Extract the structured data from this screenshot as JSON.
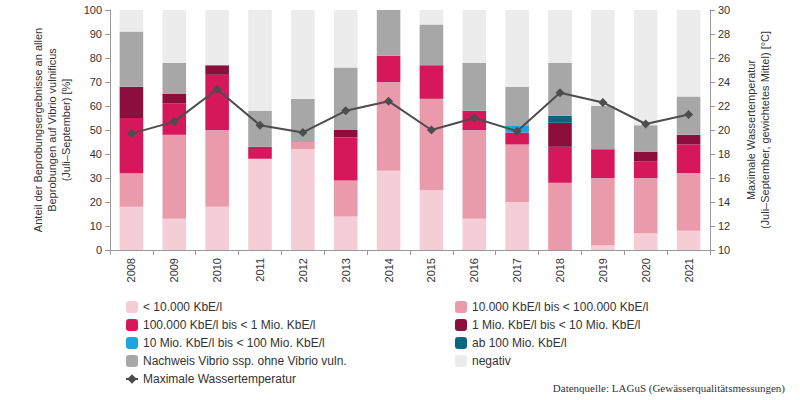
{
  "chart_data": {
    "type": "bar",
    "stacked": true,
    "grid": false,
    "categories": [
      "2008",
      "2009",
      "2010",
      "2011",
      "2012",
      "2013",
      "2014",
      "2015",
      "2016",
      "2017",
      "2018",
      "2019",
      "2020",
      "2021"
    ],
    "y_label": "Anteil der Beprobungsergebnisse an allen\nBeprobungen auf Vibrio vulnificus\n(Juli–September) [%]",
    "y2_label": "Maximale Wassertemperatur\n(Juli–September, gewichtetes Mittel) [°C]",
    "ylim": [
      0,
      100
    ],
    "yticks": [
      0,
      10,
      20,
      30,
      40,
      50,
      60,
      70,
      80,
      90,
      100
    ],
    "y2lim": [
      10,
      30
    ],
    "y2ticks": [
      10,
      12,
      14,
      16,
      18,
      20,
      22,
      24,
      26,
      28,
      30
    ],
    "source": "Datenquelle: LAGuS (Gewässerqualitätsmessungen)",
    "series": [
      {
        "name": "< 10.000 KbE/l",
        "color": "#f5cdd7",
        "values": [
          18,
          13,
          18,
          38,
          42,
          14,
          33,
          25,
          13,
          20,
          0,
          2,
          7,
          8
        ]
      },
      {
        "name": "10.000 KbE/l bis < 100.000 KbE/l",
        "color": "#e99aab",
        "values": [
          14,
          35,
          32,
          0,
          3,
          15,
          37,
          38,
          37,
          24,
          28,
          28,
          23,
          24
        ]
      },
      {
        "name": "100.000 KbE/l bis < 1 Mio. KbE/l",
        "color": "#d7175c",
        "values": [
          23,
          13,
          23,
          5,
          0,
          18,
          11,
          14,
          8,
          5,
          15,
          12,
          7,
          12
        ]
      },
      {
        "name": "1 Mio. KbE/l bis < 10 Mio. KbE/l",
        "color": "#8b0e3d",
        "values": [
          13,
          4,
          4,
          0,
          0,
          3,
          0,
          0,
          0,
          0,
          10,
          0,
          4,
          4
        ]
      },
      {
        "name": "10 Mio. KbE/l bis < 100 Mio. KbE/l",
        "color": "#1fa5dd",
        "values": [
          0,
          0,
          0,
          0,
          0,
          0,
          0,
          0,
          0,
          3,
          0,
          0,
          0,
          0
        ]
      },
      {
        "name": "ab 100 Mio. KbE/l",
        "color": "#0a667f",
        "values": [
          0,
          0,
          0,
          0,
          0,
          0,
          0,
          0,
          0,
          0,
          3,
          0,
          0,
          0
        ]
      },
      {
        "name": "Nachweis Vibrio ssp. ohne Vibrio vuln.",
        "color": "#a7a7a7",
        "values": [
          23,
          13,
          0,
          15,
          18,
          26,
          19,
          17,
          20,
          16,
          22,
          18,
          11,
          16
        ]
      },
      {
        "name": "negativ",
        "color": "#ececec",
        "values": [
          9,
          22,
          23,
          42,
          37,
          24,
          0,
          6,
          22,
          32,
          22,
          40,
          48,
          36
        ]
      },
      {
        "name": "Maximale Wassertemperatur",
        "color": "#4d4d4d",
        "type": "line",
        "axis": "y2",
        "marker": "diamond",
        "values": [
          19.7,
          20.7,
          23.4,
          20.4,
          19.8,
          21.6,
          22.4,
          20.0,
          21.0,
          19.9,
          23.1,
          22.3,
          20.5,
          21.3
        ]
      }
    ]
  }
}
